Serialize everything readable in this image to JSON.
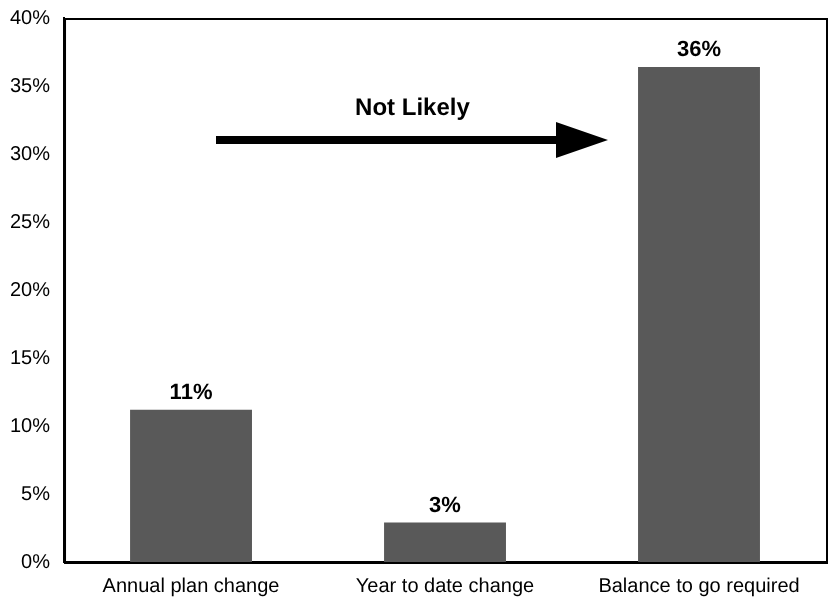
{
  "chart_data": {
    "type": "bar",
    "categories": [
      "Annual plan change",
      "Year to date change",
      "Balance to go required"
    ],
    "values": [
      11.2,
      2.9,
      36.4
    ],
    "value_labels": [
      "11%",
      "3%",
      "36%"
    ],
    "color": "#595959",
    "ylim": [
      0,
      40
    ],
    "yticks": [
      {
        "value": 0,
        "label": "0%"
      },
      {
        "value": 5,
        "label": "5%"
      },
      {
        "value": 10,
        "label": "10%"
      },
      {
        "value": 15,
        "label": "15%"
      },
      {
        "value": 20,
        "label": "20%"
      },
      {
        "value": 25,
        "label": "25%"
      },
      {
        "value": 30,
        "label": "30%"
      },
      {
        "value": 35,
        "label": "35%"
      },
      {
        "value": 40,
        "label": "40%"
      }
    ],
    "grid": false,
    "annotations": [
      "Not Likely"
    ]
  }
}
